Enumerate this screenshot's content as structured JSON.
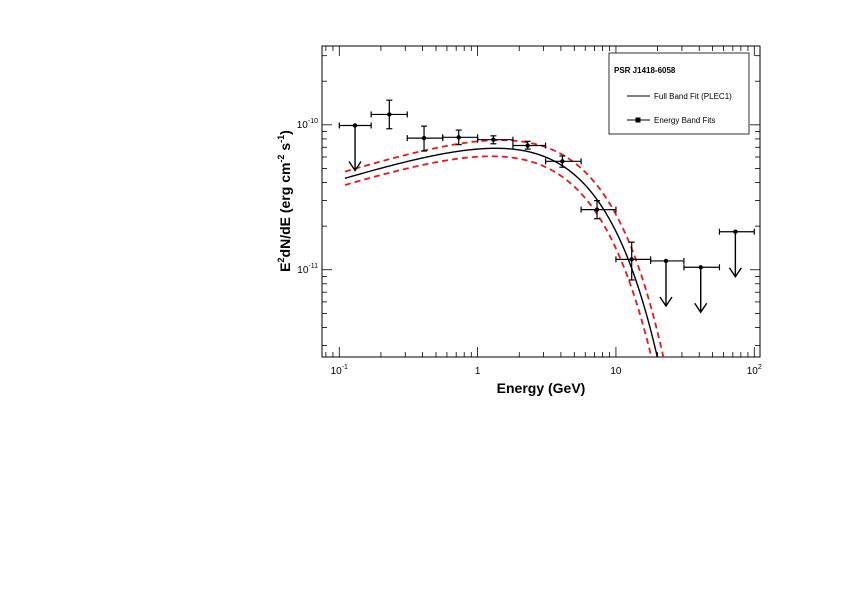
{
  "chart_data": {
    "type": "scatter",
    "title": "",
    "xlabel": "Energy (GeV)",
    "ylabel": "E2dN/dE (erg cm-2 s-1)",
    "ylabel_parts": {
      "main": "E",
      "sup1": "2",
      "mid": "dN/dE (erg cm",
      "sup2": "-2",
      "mid2": " s",
      "sup3": "-1",
      "end": ")"
    },
    "xscale": "log",
    "yscale": "log",
    "xlim": [
      0.075,
      110
    ],
    "ylim": [
      2.5e-12,
      3.5e-10
    ],
    "x_ticks": [
      {
        "value": 0.1,
        "base": "10",
        "exp": "-1"
      },
      {
        "value": 1,
        "base": "1",
        "exp": ""
      },
      {
        "value": 10,
        "base": "10",
        "exp": ""
      },
      {
        "value": 100,
        "base": "10",
        "exp": "2"
      }
    ],
    "y_ticks": [
      {
        "value": 1e-10,
        "base": "10",
        "exp": "-10"
      },
      {
        "value": 1e-11,
        "base": "10",
        "exp": "-11"
      }
    ],
    "legend": {
      "title": "PSR J1418-6058",
      "position": "top-right",
      "entries": [
        "Full Band Fit (PLEC1)",
        "Energy Band Fits"
      ]
    },
    "model": {
      "name": "Full Band Fit (PLEC1)",
      "norm": 8.5e-11,
      "gamma": 1.7,
      "cutoff_gev": 4.5,
      "x_range": [
        0.11,
        25
      ],
      "band_factor": 1.11,
      "band_spread": 0.09,
      "color": "#000000",
      "band_color": "#e41a1c"
    },
    "series": [
      {
        "name": "Energy Band Fits",
        "points": [
          {
            "x": 0.13,
            "x_lo": 0.1,
            "x_hi": 0.17,
            "y": 9.9e-11,
            "y_lo": null,
            "y_hi": null,
            "upper_limit": true
          },
          {
            "x": 0.23,
            "x_lo": 0.17,
            "x_hi": 0.31,
            "y": 1.18e-10,
            "y_lo": 9.4e-11,
            "y_hi": 1.48e-10,
            "upper_limit": false
          },
          {
            "x": 0.41,
            "x_lo": 0.31,
            "x_hi": 0.56,
            "y": 8.1e-11,
            "y_lo": 6.6e-11,
            "y_hi": 9.8e-11,
            "upper_limit": false
          },
          {
            "x": 0.73,
            "x_lo": 0.56,
            "x_hi": 1.0,
            "y": 8.2e-11,
            "y_lo": 7.3e-11,
            "y_hi": 9.2e-11,
            "upper_limit": false
          },
          {
            "x": 1.3,
            "x_lo": 1.0,
            "x_hi": 1.8,
            "y": 7.9e-11,
            "y_lo": 7.4e-11,
            "y_hi": 8.4e-11,
            "upper_limit": false
          },
          {
            "x": 2.3,
            "x_lo": 1.8,
            "x_hi": 3.1,
            "y": 7.2e-11,
            "y_lo": 6.8e-11,
            "y_hi": 7.7e-11,
            "upper_limit": false
          },
          {
            "x": 4.1,
            "x_lo": 3.1,
            "x_hi": 5.6,
            "y": 5.6e-11,
            "y_lo": 5.1e-11,
            "y_hi": 6.1e-11,
            "upper_limit": false
          },
          {
            "x": 7.3,
            "x_lo": 5.6,
            "x_hi": 10,
            "y": 2.6e-11,
            "y_lo": 2.25e-11,
            "y_hi": 3e-11,
            "upper_limit": false
          },
          {
            "x": 13,
            "x_lo": 10,
            "x_hi": 17.8,
            "y": 1.18e-11,
            "y_lo": 8.5e-12,
            "y_hi": 1.55e-11,
            "upper_limit": false
          },
          {
            "x": 23,
            "x_lo": 17.8,
            "x_hi": 31,
            "y": 1.15e-11,
            "y_lo": null,
            "y_hi": null,
            "upper_limit": true
          },
          {
            "x": 41,
            "x_lo": 31,
            "x_hi": 56,
            "y": 1.04e-11,
            "y_lo": null,
            "y_hi": null,
            "upper_limit": true
          },
          {
            "x": 73,
            "x_lo": 56,
            "x_hi": 100,
            "y": 1.83e-11,
            "y_lo": null,
            "y_hi": null,
            "upper_limit": true
          }
        ]
      }
    ]
  }
}
